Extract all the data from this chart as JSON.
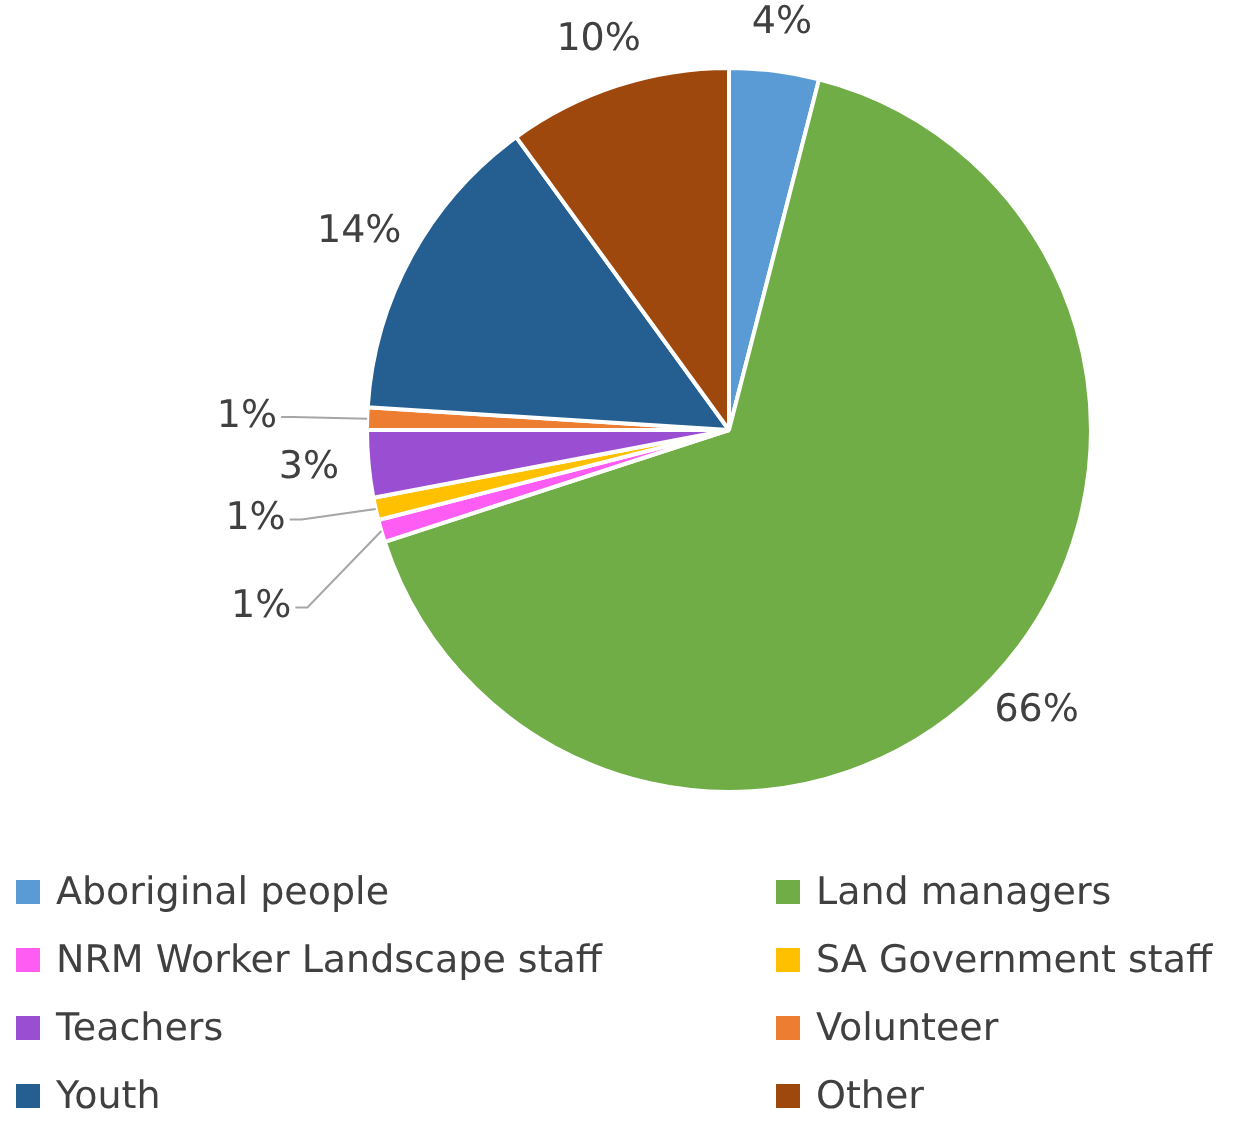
{
  "chart_data": {
    "type": "pie",
    "categories": [
      "Aboriginal people",
      "Land managers",
      "NRM Worker Landscape staff",
      "SA Government staff",
      "Teachers",
      "Volunteer",
      "Youth",
      "Other"
    ],
    "values": [
      4,
      66,
      1,
      1,
      3,
      1,
      14,
      10
    ],
    "value_labels": [
      "4%",
      "66%",
      "1%",
      "1%",
      "3%",
      "1%",
      "14%",
      "10%"
    ],
    "colors": [
      "#5b9bd5",
      "#70ad47",
      "#ff5cf4",
      "#ffc000",
      "#9a4fd3",
      "#ed7d31",
      "#255e91",
      "#9e480e"
    ],
    "legend": "bottom"
  }
}
